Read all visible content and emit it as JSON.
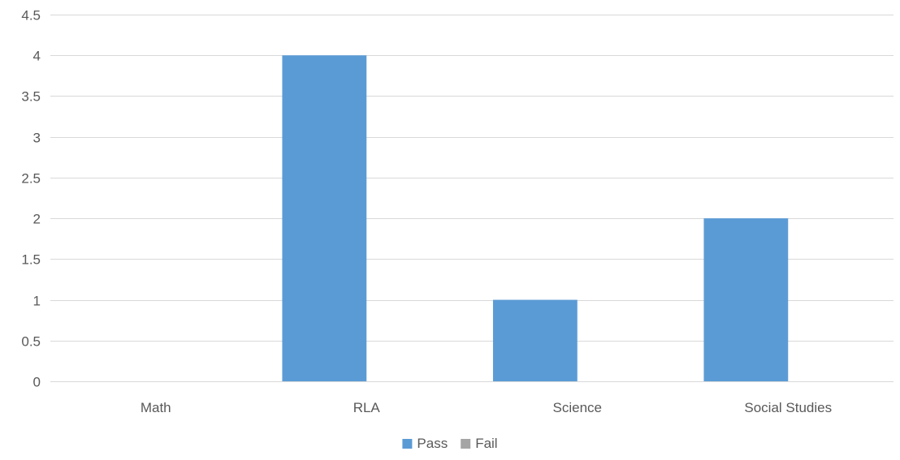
{
  "chart_data": {
    "type": "bar",
    "categories": [
      "Math",
      "RLA",
      "Science",
      "Social Studies"
    ],
    "series": [
      {
        "name": "Pass",
        "values": [
          0,
          4,
          1,
          2
        ],
        "color": "#5B9BD5"
      },
      {
        "name": "Fail",
        "values": [
          0,
          0,
          0,
          0
        ],
        "color": "#A5A5A5"
      }
    ],
    "ylim": [
      0,
      4.5
    ],
    "yticks": [
      "0",
      "0.5",
      "1",
      "1.5",
      "2",
      "2.5",
      "3",
      "3.5",
      "4",
      "4.5"
    ],
    "grid": true,
    "legend_position": "bottom",
    "colors": {
      "gridline": "#D9D9D9",
      "axis_text": "#595959"
    }
  }
}
